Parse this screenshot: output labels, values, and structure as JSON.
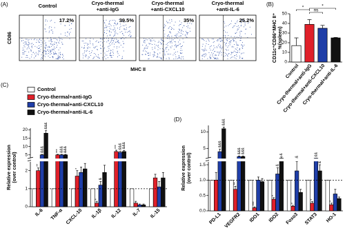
{
  "chart_data": [
    {
      "type": "flow",
      "panel_label": "(A)",
      "ylabel": "CD86",
      "xlabel": "MHC II",
      "panels": [
        [
          "Control"
        ],
        [
          "Cryo-thermal",
          "+anti-IgG"
        ],
        [
          "Cryo-thermal",
          "+anti-CXCL10"
        ],
        [
          "Cryo-thermal",
          "+anti-IL-6"
        ]
      ],
      "values": [
        17.2,
        39.5,
        35,
        25.2
      ],
      "value_labels": [
        "17.2%",
        "39.5%",
        "35%",
        "25.2%"
      ],
      "color": "#2f4fa8"
    },
    {
      "type": "bar",
      "panel_label": "(B)",
      "ylabel": [
        "CD11c⁺CD86⁺MHC II⁺",
        "%(spleen)"
      ],
      "categories": [
        "Control",
        "Cryo-thermal+anti-IgG",
        "Cryo-thermal+anti-CXCL10",
        "Cryo-thermal+anti-IL-6"
      ],
      "values": [
        17,
        39,
        35,
        25
      ],
      "errors": [
        8,
        5,
        3,
        0.5
      ],
      "colors": [
        "#ffffff",
        "#e0202a",
        "#1f3ea8",
        "#111111"
      ],
      "ylim": [
        0,
        50
      ],
      "yticks": [
        0,
        10,
        20,
        30,
        40,
        50
      ],
      "brackets": [
        {
          "text": "*",
          "from": 0,
          "to": 1
        },
        {
          "text": "ns",
          "from": 1,
          "to": 2
        },
        {
          "text": "*",
          "from": 1,
          "to": 3
        }
      ]
    },
    {
      "type": "grouped-bar",
      "panel_label": "(C)",
      "ylabel": [
        "Relative expression",
        "(over control)"
      ],
      "categories": [
        "IL-6",
        "TNF-α",
        "CXCL-10",
        "IL-1β",
        "IL-12",
        "IL-7",
        "IL-15"
      ],
      "ylim": [
        0,
        21
      ],
      "ybreak": [
        2.5,
        3
      ],
      "yticks": [
        0,
        1,
        2,
        5,
        10,
        15,
        20
      ],
      "reference_line": 1,
      "series": [
        {
          "name": "Control",
          "color": "#ffffff",
          "values": [
            1,
            1,
            1,
            1,
            1,
            1,
            1
          ]
        },
        {
          "name": "Cryo-thermal+anti-IgG",
          "color": "#e0202a",
          "values": [
            2.0,
            5,
            1.7,
            0.2,
            7,
            0.2,
            1.6
          ],
          "errors": [
            0.15,
            0.3,
            0.3,
            0.1,
            0.8,
            0.1,
            0.2
          ],
          "significance": [
            "**",
            "***",
            "*",
            "*",
            "***",
            null,
            null
          ]
        },
        {
          "name": "Cryo-thermal+anti-CXCL10",
          "color": "#1f3ea8",
          "values": [
            5,
            5,
            1.9,
            1.2,
            6.5,
            0.1,
            1.1
          ],
          "errors": [
            0.3,
            0.3,
            0.3,
            0.2,
            0.6,
            0.05,
            0.3
          ],
          "significance": [
            "&&&",
            "&&&",
            null,
            "&",
            "&&&",
            null,
            null
          ]
        },
        {
          "name": "Cryo-thermal+anti-IL-6",
          "color": "#111111",
          "values": [
            18,
            5,
            2.1,
            1.9,
            7,
            0.1,
            1.6
          ],
          "errors": [
            1.5,
            0.3,
            0.3,
            0.4,
            0.7,
            0.05,
            0.3
          ],
          "significance": [
            "&&&",
            "&&&",
            null,
            null,
            "&&&",
            null,
            null
          ]
        }
      ]
    },
    {
      "type": "grouped-bar",
      "panel_label": "(D)",
      "ylabel": [
        "Relative expression",
        "(over control)"
      ],
      "categories": [
        "PD-L1",
        "VEGFR2",
        "IDO1",
        "IDO2",
        "Foxo3",
        "STAT3",
        "HO-1"
      ],
      "ylim": [
        0,
        12
      ],
      "ybreak": [
        1.6,
        2
      ],
      "reference_line": 1,
      "yticks": [
        {
          "value": 0,
          "label": "0.0"
        },
        {
          "value": 0.5,
          "label": "0.5"
        },
        {
          "value": 1,
          "label": "1.0"
        },
        {
          "value": 1.5,
          "label": "1.5"
        },
        5,
        10
      ],
      "series": [
        {
          "color": "#ffffff",
          "values": [
            1,
            1,
            1,
            1,
            1,
            1,
            1
          ]
        },
        {
          "color": "#e0202a",
          "values": [
            1.0,
            0.7,
            0.1,
            0.38,
            0.15,
            0.25,
            0.2
          ],
          "errors": [
            0.25,
            0.1,
            0.03,
            0.05,
            0.03,
            0.05,
            0.05
          ],
          "significance": [
            null,
            "**",
            "***",
            "*",
            "*",
            "*",
            "*"
          ]
        },
        {
          "color": "#1f3ea8",
          "values": [
            4,
            2.5,
            1.0,
            1.2,
            1.3,
            1.75,
            0.55
          ],
          "errors": [
            0.8,
            0.2,
            0.1,
            0.2,
            0.3,
            0.1,
            0.15
          ],
          "significance": [
            "&&&",
            "&&&",
            null,
            "&",
            "&&",
            "&&",
            null
          ]
        },
        {
          "color": "#111111",
          "values": [
            11,
            2.5,
            0.95,
            2.0,
            0.6,
            1.3,
            0.4
          ],
          "errors": [
            0.5,
            0.2,
            0.1,
            0.4,
            0.1,
            0.2,
            0.05
          ],
          "significance": [
            "&&&",
            "&&&",
            null,
            "&",
            null,
            "&",
            null
          ]
        }
      ]
    }
  ]
}
